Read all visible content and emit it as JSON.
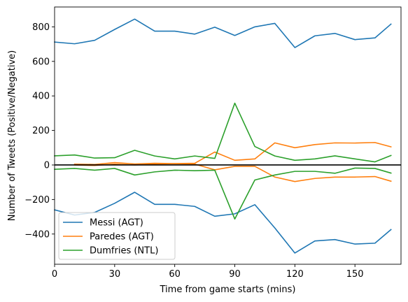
{
  "chart_data": {
    "type": "line",
    "xlabel": "Time from game starts (mins)",
    "ylabel": "Number of Tweets (Positive/Negative)",
    "xlim": [
      0,
      173
    ],
    "ylim": [
      -575,
      915
    ],
    "xticks": [
      0,
      30,
      60,
      90,
      120,
      150
    ],
    "yticks": [
      -400,
      -200,
      0,
      200,
      400,
      600,
      800
    ],
    "zero_line": true,
    "grid": false,
    "legend_position": "lower-left",
    "series": [
      {
        "name": "Messi (AGT)",
        "color": "#1f77b4",
        "x": [
          0,
          10,
          20,
          30,
          40,
          50,
          60,
          70,
          80,
          90,
          100,
          110,
          120,
          130,
          140,
          150,
          160,
          168
        ],
        "positive": [
          712,
          702,
          722,
          785,
          845,
          775,
          775,
          758,
          798,
          750,
          800,
          820,
          680,
          748,
          762,
          726,
          736,
          816
        ],
        "negative": [
          -260,
          -290,
          -275,
          -222,
          -158,
          -228,
          -228,
          -240,
          -297,
          -283,
          -230,
          -365,
          -510,
          -440,
          -432,
          -458,
          -453,
          -374
        ]
      },
      {
        "name": "Paredes (AGT)",
        "color": "#ff7f0e",
        "x": [
          10,
          20,
          30,
          40,
          50,
          60,
          70,
          80,
          90,
          100,
          110,
          120,
          130,
          140,
          150,
          160,
          168
        ],
        "positive": [
          5,
          3,
          14,
          6,
          10,
          8,
          10,
          75,
          27,
          35,
          128,
          100,
          118,
          128,
          127,
          130,
          105
        ],
        "negative": [
          0,
          -3,
          5,
          0,
          5,
          8,
          5,
          -28,
          -8,
          -8,
          -70,
          -96,
          -78,
          -70,
          -70,
          -67,
          -94
        ]
      },
      {
        "name": "Dumfries (NTL)",
        "color": "#2ca02c",
        "x": [
          0,
          10,
          20,
          30,
          40,
          50,
          60,
          70,
          80,
          90,
          100,
          110,
          120,
          130,
          140,
          150,
          160,
          168
        ],
        "positive": [
          53,
          58,
          40,
          42,
          85,
          52,
          35,
          52,
          38,
          358,
          107,
          52,
          27,
          35,
          53,
          35,
          18,
          55
        ],
        "negative": [
          -25,
          -20,
          -30,
          -20,
          -58,
          -40,
          -30,
          -33,
          -30,
          -313,
          -87,
          -58,
          -37,
          -37,
          -48,
          -18,
          -20,
          -47
        ]
      }
    ]
  }
}
